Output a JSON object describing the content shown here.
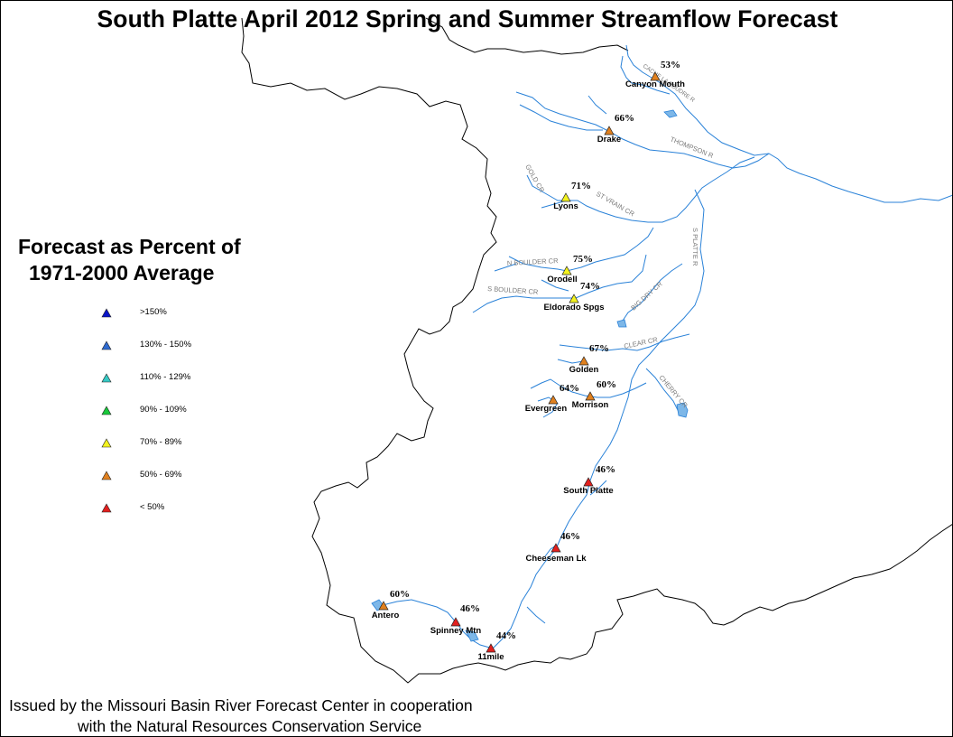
{
  "title": "South Platte April 2012 Spring and Summer Streamflow Forecast",
  "legend": {
    "title_line1": "Forecast as Percent of",
    "title_line2": "1971-2000 Average",
    "classes": [
      {
        "label": ">150%",
        "color": "#0a15c8"
      },
      {
        "label": "130% - 150%",
        "color": "#2e6ad0"
      },
      {
        "label": "110% - 129%",
        "color": "#36c9c4"
      },
      {
        "label": "90% - 109%",
        "color": "#18c83a"
      },
      {
        "label": "70% - 89%",
        "color": "#f2f21e"
      },
      {
        "label": "50% - 69%",
        "color": "#e0801e"
      },
      {
        "label": "< 50%",
        "color": "#e2201e"
      }
    ]
  },
  "stations": [
    {
      "name": "Canyon Mouth",
      "percent": "53%",
      "class": "50% - 69%"
    },
    {
      "name": "Drake",
      "percent": "66%",
      "class": "50% - 69%"
    },
    {
      "name": "Lyons",
      "percent": "71%",
      "class": "70% - 89%"
    },
    {
      "name": "Orodell",
      "percent": "75%",
      "class": "70% - 89%"
    },
    {
      "name": "Eldorado Spgs",
      "percent": "74%",
      "class": "70% - 89%"
    },
    {
      "name": "Golden",
      "percent": "67%",
      "class": "50% - 69%"
    },
    {
      "name": "Evergreen",
      "percent": "64%",
      "class": "50% - 69%"
    },
    {
      "name": "Morrison",
      "percent": "60%",
      "class": "50% - 69%"
    },
    {
      "name": "South Platte",
      "percent": "46%",
      "class": "< 50%"
    },
    {
      "name": "Cheeseman Lk",
      "percent": "46%",
      "class": "< 50%"
    },
    {
      "name": "Antero",
      "percent": "60%",
      "class": "50% - 69%"
    },
    {
      "name": "Spinney Mtn",
      "percent": "46%",
      "class": "< 50%"
    },
    {
      "name": "11mile",
      "percent": "44%",
      "class": "< 50%"
    }
  ],
  "river_labels": [
    {
      "text": "THOMPSON R"
    },
    {
      "text": "CACHE LA POUDRE R"
    },
    {
      "text": "GOLD CR"
    },
    {
      "text": "ST VRAIN CR"
    },
    {
      "text": "N BOULDER CR"
    },
    {
      "text": "S BOULDER CR"
    },
    {
      "text": "S PLATTE R"
    },
    {
      "text": "BIG DRY CR"
    },
    {
      "text": "CLEAR CR"
    },
    {
      "text": "CHERRY CR"
    }
  ],
  "footer": {
    "line1": "Issued by the Missouri Basin River Forecast Center in cooperation",
    "line2": "with the Natural Resources Conservation Service"
  },
  "colors": {
    "river": "#2a82d8",
    "boundary": "#000000",
    "lake": "#7db7e8",
    "river_label": "#7a7a7a"
  }
}
